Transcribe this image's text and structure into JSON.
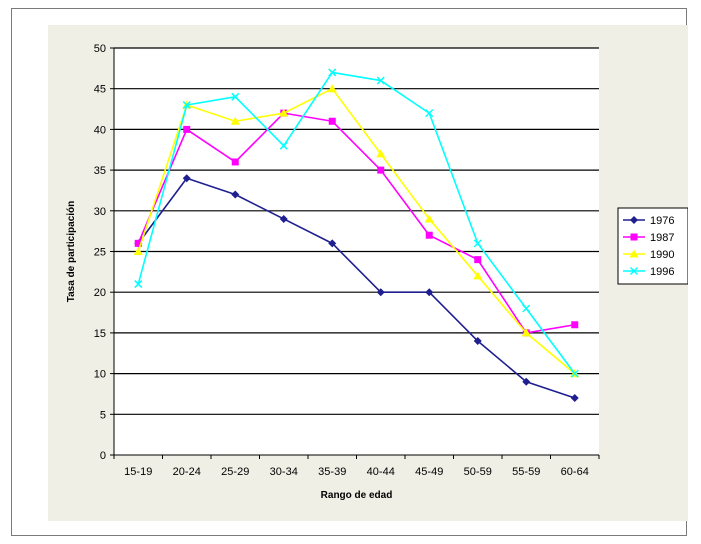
{
  "chart_data": {
    "type": "line",
    "title": "",
    "xlabel": "Rango de edad",
    "ylabel": "Tasa de participación",
    "categories": [
      "15-19",
      "20-24",
      "25-29",
      "30-34",
      "35-39",
      "40-44",
      "45-49",
      "50-59",
      "55-59",
      "60-64"
    ],
    "ylim": [
      0,
      50
    ],
    "yticks": [
      0,
      5,
      10,
      15,
      20,
      25,
      30,
      35,
      40,
      45,
      50
    ],
    "grid": true,
    "legend_position": "right",
    "plot_background": "#ffffff",
    "chart_background": "#efefe6",
    "series": [
      {
        "name": "1976",
        "color": "#1f1f8f",
        "marker": "diamond",
        "values": [
          26,
          34,
          32,
          29,
          26,
          20,
          20,
          14,
          9,
          7
        ]
      },
      {
        "name": "1987",
        "color": "#ff00ff",
        "marker": "square",
        "values": [
          26,
          40,
          36,
          42,
          41,
          35,
          27,
          24,
          15,
          16
        ]
      },
      {
        "name": "1990",
        "color": "#ffff00",
        "marker": "triangle",
        "values": [
          25,
          43,
          41,
          42,
          45,
          37,
          29,
          22,
          15,
          10
        ]
      },
      {
        "name": "1996",
        "color": "#00ffff",
        "marker": "x",
        "values": [
          21,
          43,
          44,
          38,
          47,
          46,
          42,
          26,
          18,
          10
        ]
      }
    ]
  }
}
